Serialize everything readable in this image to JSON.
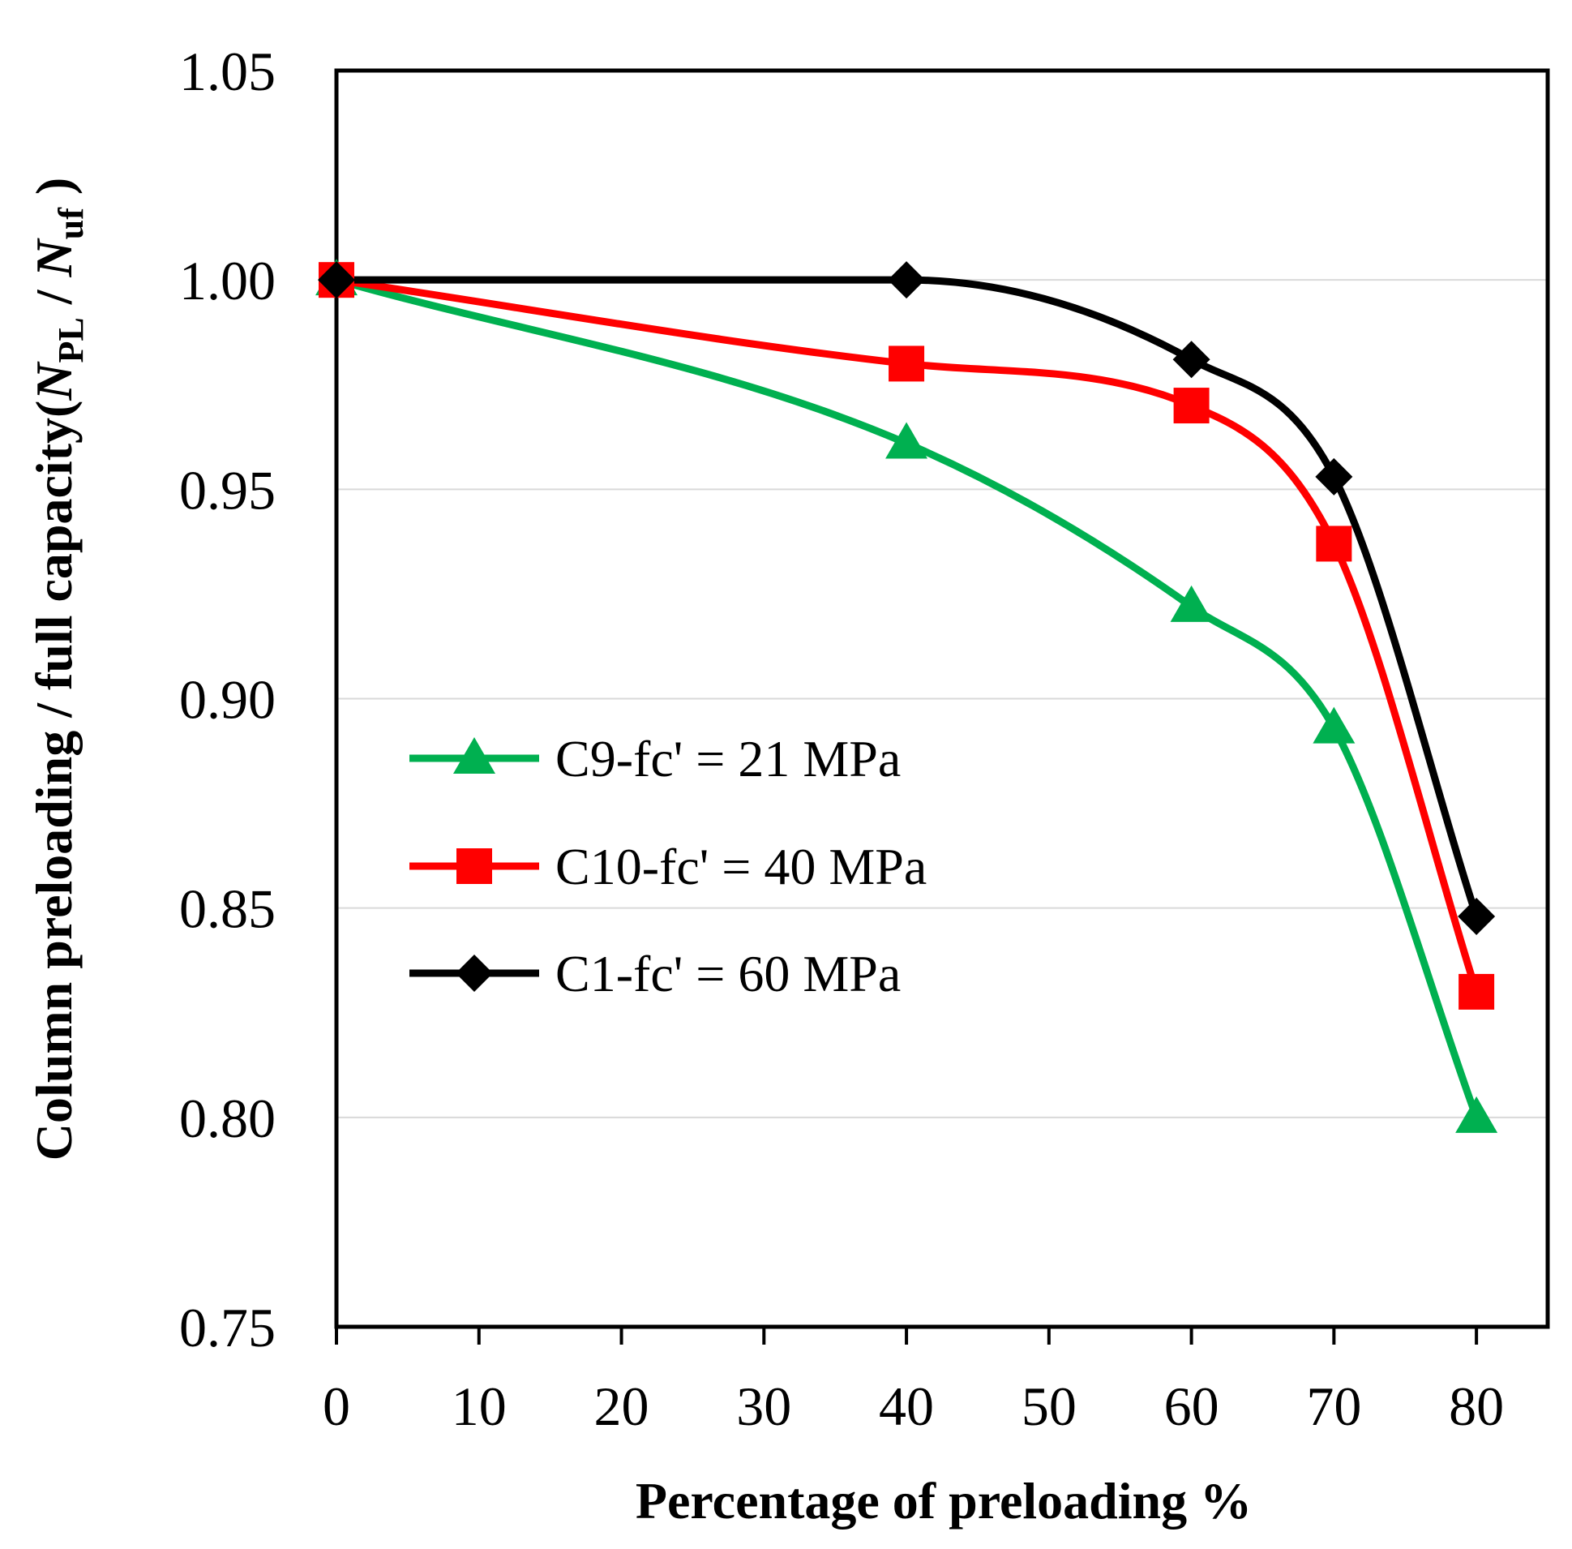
{
  "chart_data": {
    "type": "line",
    "title": "",
    "xlabel": "Percentage of preloading %",
    "ylabel": {
      "prefix": "Column preloading / full capacity(",
      "n1": "N",
      "sub1": "PL",
      "slash": " / ",
      "n2": "N",
      "sub2": "uf",
      "suffix": " )"
    },
    "xlim": [
      0,
      85
    ],
    "ylim": [
      0.75,
      1.05
    ],
    "x_ticks": [
      0,
      10,
      20,
      30,
      40,
      50,
      60,
      70,
      80
    ],
    "y_ticks": [
      0.75,
      0.8,
      0.85,
      0.9,
      0.95,
      1.0,
      1.05
    ],
    "y_tick_labels": [
      "0.75",
      "0.80",
      "0.85",
      "0.90",
      "0.95",
      "1.00",
      "1.05"
    ],
    "grid": "horizontal",
    "legend_position": "middle-left",
    "x": [
      0,
      40,
      60,
      70,
      80
    ],
    "series": [
      {
        "name": "C9-fc' = 21 MPa",
        "marker": "triangle",
        "color": "#00b050",
        "values": [
          1.0,
          0.961,
          0.922,
          0.893,
          0.8
        ]
      },
      {
        "name": "C10-fc' = 40 MPa",
        "marker": "square",
        "color": "#ff0000",
        "values": [
          1.0,
          0.98,
          0.97,
          0.937,
          0.83
        ]
      },
      {
        "name": "C1-fc' = 60 MPa",
        "marker": "diamond",
        "color": "#000000",
        "values": [
          1.0,
          1.0,
          0.981,
          0.953,
          0.848
        ]
      }
    ]
  }
}
